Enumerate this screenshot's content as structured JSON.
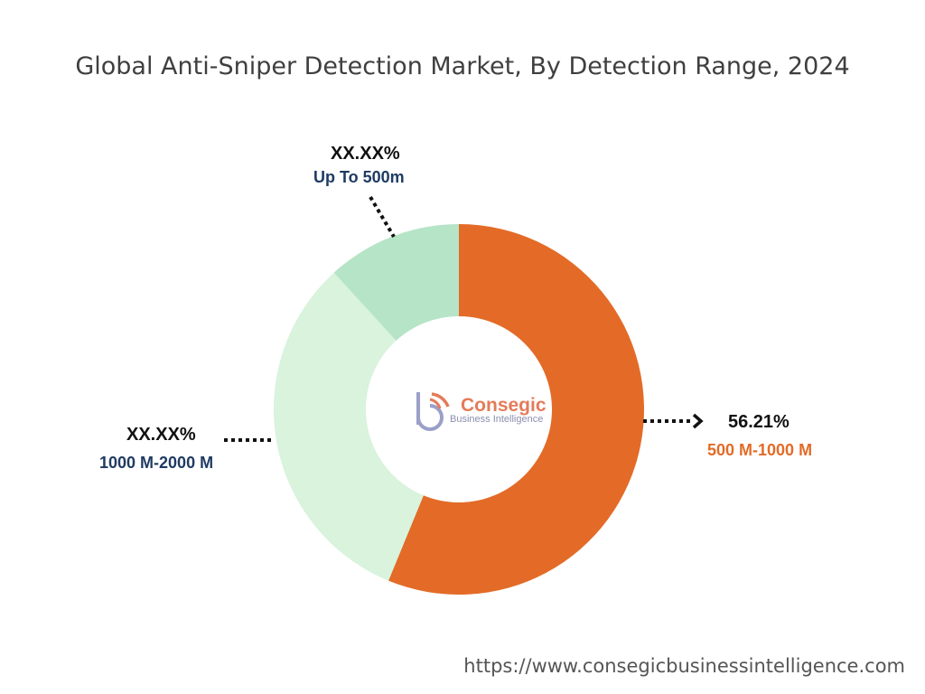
{
  "title": "Global Anti-Sniper Detection Market, By Detection Range, 2024",
  "logo": {
    "name": "Consegic",
    "tagline": "Business Intelligence"
  },
  "footer_url": "https://www.consegicbusinessintelligence.com",
  "colors": {
    "slice_500_1000": "#e36b27",
    "slice_1000_2000": "#d9f3dd",
    "slice_up_to_500": "#b6e4c7",
    "label_dark_blue": "#1f3b63",
    "label_orange": "#e36b27"
  },
  "chart_data": {
    "type": "pie",
    "donut": true,
    "slices": [
      {
        "label": "500 M-1000 M",
        "value_label": "56.21%",
        "value": 56.21,
        "color": "#e36b27"
      },
      {
        "label": "1000 M-2000 M",
        "value_label": "XX.XX%",
        "value": 32.0,
        "color": "#d9f3dd"
      },
      {
        "label": "Up To 500m",
        "value_label": "XX.XX%",
        "value": 11.79,
        "color": "#b6e4c7"
      }
    ]
  }
}
